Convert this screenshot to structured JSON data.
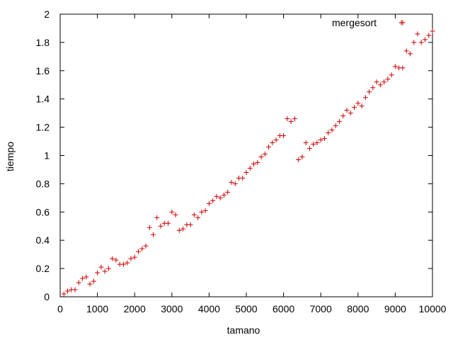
{
  "chart_data": {
    "type": "scatter",
    "title": "",
    "xlabel": "tamano",
    "ylabel": "tiempo",
    "xlim": [
      0,
      10000
    ],
    "ylim": [
      0,
      2
    ],
    "xticks": [
      "0",
      "1000",
      "2000",
      "3000",
      "4000",
      "5000",
      "6000",
      "7000",
      "8000",
      "9000",
      "10000"
    ],
    "yticks": [
      "0",
      "0.2",
      "0.4",
      "0.6",
      "0.8",
      "1",
      "1.2",
      "1.4",
      "1.6",
      "1.8",
      "2"
    ],
    "grid": false,
    "legend_position": "top-right",
    "marker": "+",
    "series": [
      {
        "name": "mergesort",
        "color": "#cc0000",
        "x": [
          100,
          200,
          300,
          400,
          500,
          600,
          700,
          800,
          900,
          1000,
          1100,
          1200,
          1300,
          1400,
          1500,
          1600,
          1700,
          1800,
          1900,
          2000,
          2100,
          2200,
          2300,
          2400,
          2500,
          2600,
          2700,
          2800,
          2900,
          3000,
          3100,
          3200,
          3300,
          3400,
          3500,
          3600,
          3700,
          3800,
          3900,
          4000,
          4100,
          4200,
          4300,
          4400,
          4500,
          4600,
          4700,
          4800,
          4900,
          5000,
          5100,
          5200,
          5300,
          5400,
          5500,
          5600,
          5700,
          5800,
          5900,
          6000,
          6100,
          6200,
          6300,
          6400,
          6500,
          6600,
          6700,
          6800,
          6900,
          7000,
          7100,
          7200,
          7300,
          7400,
          7500,
          7600,
          7700,
          7800,
          7900,
          8000,
          8100,
          8200,
          8300,
          8400,
          8500,
          8600,
          8700,
          8800,
          8900,
          9000,
          9100,
          9200,
          9300,
          9400,
          9500,
          9600,
          9700,
          9800,
          9900,
          10000
        ],
        "y": [
          0.02,
          0.04,
          0.05,
          0.05,
          0.1,
          0.13,
          0.14,
          0.09,
          0.11,
          0.17,
          0.21,
          0.18,
          0.2,
          0.27,
          0.26,
          0.23,
          0.23,
          0.24,
          0.27,
          0.28,
          0.32,
          0.34,
          0.36,
          0.49,
          0.44,
          0.56,
          0.5,
          0.52,
          0.52,
          0.6,
          0.58,
          0.47,
          0.48,
          0.51,
          0.51,
          0.58,
          0.56,
          0.6,
          0.61,
          0.66,
          0.68,
          0.71,
          0.7,
          0.72,
          0.74,
          0.81,
          0.8,
          0.84,
          0.84,
          0.88,
          0.91,
          0.94,
          0.95,
          0.99,
          1.01,
          1.06,
          1.09,
          1.11,
          1.14,
          1.14,
          1.26,
          1.24,
          1.26,
          0.97,
          0.99,
          1.09,
          1.05,
          1.08,
          1.09,
          1.11,
          1.12,
          1.16,
          1.18,
          1.21,
          1.24,
          1.28,
          1.32,
          1.3,
          1.34,
          1.37,
          1.35,
          1.41,
          1.45,
          1.48,
          1.52,
          1.5,
          1.52,
          1.54,
          1.57,
          1.63,
          1.62,
          1.62,
          1.74,
          1.72,
          1.8,
          1.86,
          1.8,
          1.82,
          1.85,
          1.88
        ]
      }
    ],
    "outlier": {
      "x": 9200,
      "y": 1.94
    }
  }
}
